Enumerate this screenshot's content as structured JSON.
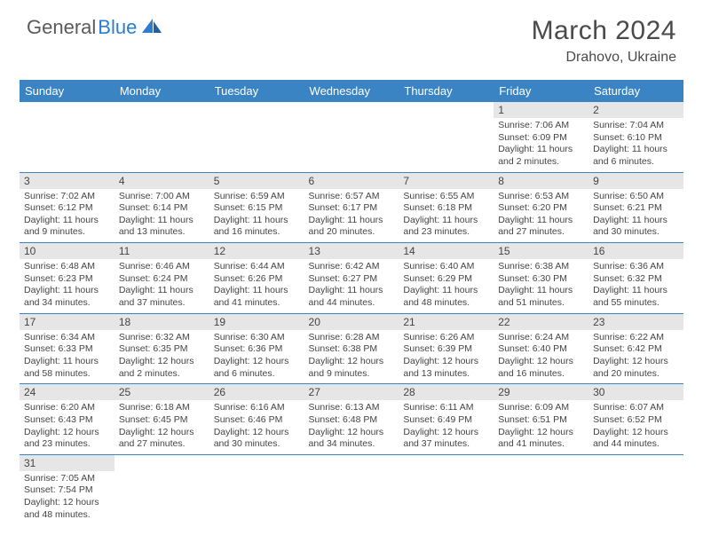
{
  "logo": {
    "part1": "General",
    "part2": "Blue"
  },
  "title": "March 2024",
  "location": "Drahovo, Ukraine",
  "colors": {
    "header_bg": "#3b84c4",
    "header_text": "#ffffff",
    "daynum_bg": "#e6e6e6",
    "row_border": "#3b84c4",
    "logo_gray": "#5a5a5a",
    "logo_blue": "#2b7cd3"
  },
  "daysOfWeek": [
    "Sunday",
    "Monday",
    "Tuesday",
    "Wednesday",
    "Thursday",
    "Friday",
    "Saturday"
  ],
  "weeks": [
    [
      null,
      null,
      null,
      null,
      null,
      {
        "n": "1",
        "sr": "7:06 AM",
        "ss": "6:09 PM",
        "dl": "11 hours and 2 minutes."
      },
      {
        "n": "2",
        "sr": "7:04 AM",
        "ss": "6:10 PM",
        "dl": "11 hours and 6 minutes."
      }
    ],
    [
      {
        "n": "3",
        "sr": "7:02 AM",
        "ss": "6:12 PM",
        "dl": "11 hours and 9 minutes."
      },
      {
        "n": "4",
        "sr": "7:00 AM",
        "ss": "6:14 PM",
        "dl": "11 hours and 13 minutes."
      },
      {
        "n": "5",
        "sr": "6:59 AM",
        "ss": "6:15 PM",
        "dl": "11 hours and 16 minutes."
      },
      {
        "n": "6",
        "sr": "6:57 AM",
        "ss": "6:17 PM",
        "dl": "11 hours and 20 minutes."
      },
      {
        "n": "7",
        "sr": "6:55 AM",
        "ss": "6:18 PM",
        "dl": "11 hours and 23 minutes."
      },
      {
        "n": "8",
        "sr": "6:53 AM",
        "ss": "6:20 PM",
        "dl": "11 hours and 27 minutes."
      },
      {
        "n": "9",
        "sr": "6:50 AM",
        "ss": "6:21 PM",
        "dl": "11 hours and 30 minutes."
      }
    ],
    [
      {
        "n": "10",
        "sr": "6:48 AM",
        "ss": "6:23 PM",
        "dl": "11 hours and 34 minutes."
      },
      {
        "n": "11",
        "sr": "6:46 AM",
        "ss": "6:24 PM",
        "dl": "11 hours and 37 minutes."
      },
      {
        "n": "12",
        "sr": "6:44 AM",
        "ss": "6:26 PM",
        "dl": "11 hours and 41 minutes."
      },
      {
        "n": "13",
        "sr": "6:42 AM",
        "ss": "6:27 PM",
        "dl": "11 hours and 44 minutes."
      },
      {
        "n": "14",
        "sr": "6:40 AM",
        "ss": "6:29 PM",
        "dl": "11 hours and 48 minutes."
      },
      {
        "n": "15",
        "sr": "6:38 AM",
        "ss": "6:30 PM",
        "dl": "11 hours and 51 minutes."
      },
      {
        "n": "16",
        "sr": "6:36 AM",
        "ss": "6:32 PM",
        "dl": "11 hours and 55 minutes."
      }
    ],
    [
      {
        "n": "17",
        "sr": "6:34 AM",
        "ss": "6:33 PM",
        "dl": "11 hours and 58 minutes."
      },
      {
        "n": "18",
        "sr": "6:32 AM",
        "ss": "6:35 PM",
        "dl": "12 hours and 2 minutes."
      },
      {
        "n": "19",
        "sr": "6:30 AM",
        "ss": "6:36 PM",
        "dl": "12 hours and 6 minutes."
      },
      {
        "n": "20",
        "sr": "6:28 AM",
        "ss": "6:38 PM",
        "dl": "12 hours and 9 minutes."
      },
      {
        "n": "21",
        "sr": "6:26 AM",
        "ss": "6:39 PM",
        "dl": "12 hours and 13 minutes."
      },
      {
        "n": "22",
        "sr": "6:24 AM",
        "ss": "6:40 PM",
        "dl": "12 hours and 16 minutes."
      },
      {
        "n": "23",
        "sr": "6:22 AM",
        "ss": "6:42 PM",
        "dl": "12 hours and 20 minutes."
      }
    ],
    [
      {
        "n": "24",
        "sr": "6:20 AM",
        "ss": "6:43 PM",
        "dl": "12 hours and 23 minutes."
      },
      {
        "n": "25",
        "sr": "6:18 AM",
        "ss": "6:45 PM",
        "dl": "12 hours and 27 minutes."
      },
      {
        "n": "26",
        "sr": "6:16 AM",
        "ss": "6:46 PM",
        "dl": "12 hours and 30 minutes."
      },
      {
        "n": "27",
        "sr": "6:13 AM",
        "ss": "6:48 PM",
        "dl": "12 hours and 34 minutes."
      },
      {
        "n": "28",
        "sr": "6:11 AM",
        "ss": "6:49 PM",
        "dl": "12 hours and 37 minutes."
      },
      {
        "n": "29",
        "sr": "6:09 AM",
        "ss": "6:51 PM",
        "dl": "12 hours and 41 minutes."
      },
      {
        "n": "30",
        "sr": "6:07 AM",
        "ss": "6:52 PM",
        "dl": "12 hours and 44 minutes."
      }
    ],
    [
      {
        "n": "31",
        "sr": "7:05 AM",
        "ss": "7:54 PM",
        "dl": "12 hours and 48 minutes."
      },
      null,
      null,
      null,
      null,
      null,
      null
    ]
  ],
  "labels": {
    "sunrise": "Sunrise:",
    "sunset": "Sunset:",
    "daylight": "Daylight:"
  }
}
